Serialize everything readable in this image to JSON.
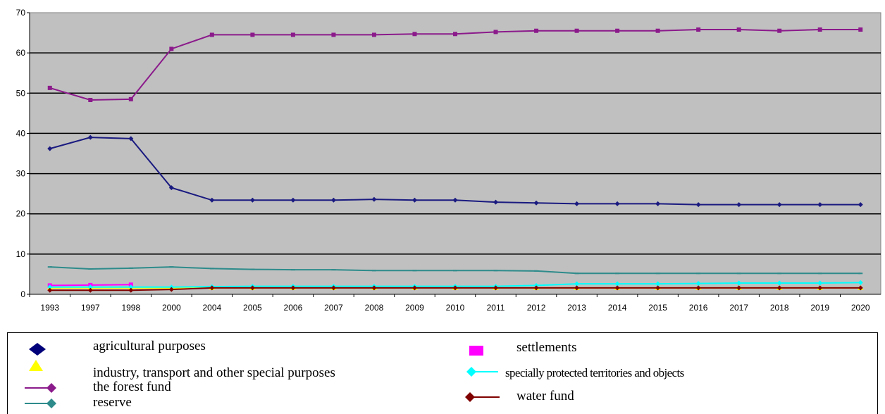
{
  "chart_data": {
    "type": "line",
    "x": [
      "1993",
      "1997",
      "1998",
      "2000",
      "2004",
      "2005",
      "2006",
      "2007",
      "2008",
      "2009",
      "2010",
      "2011",
      "2012",
      "2013",
      "2014",
      "2015",
      "2016",
      "2017",
      "2018",
      "2019",
      "2020"
    ],
    "ylim": [
      0,
      70
    ],
    "yticks": [
      "0",
      "10",
      "20",
      "30",
      "40",
      "50",
      "60",
      "70"
    ],
    "grid": true,
    "legend_position": "bottom",
    "series": [
      {
        "name": "agricultural purposes",
        "color": "#1a1a80",
        "marker": "diamond",
        "values": [
          36.2,
          39.0,
          38.7,
          26.5,
          23.4,
          23.4,
          23.4,
          23.4,
          23.6,
          23.4,
          23.4,
          22.9,
          22.7,
          22.5,
          22.5,
          22.5,
          22.3,
          22.3,
          22.3,
          22.3,
          22.3
        ]
      },
      {
        "name": "settlements",
        "color": "#ff00ff",
        "marker": "square",
        "values": [
          2.2,
          2.3,
          2.4,
          null,
          null,
          null,
          null,
          null,
          null,
          null,
          null,
          null,
          null,
          null,
          null,
          null,
          null,
          null,
          null,
          null,
          null
        ]
      },
      {
        "name": "industry, transport and other special purposes",
        "color": "#ffff00",
        "marker": "triangle",
        "values": [
          1.6,
          1.6,
          1.6,
          1.6,
          1.6,
          1.6,
          1.6,
          1.6,
          1.6,
          1.6,
          1.6,
          1.6,
          1.6,
          1.6,
          1.6,
          1.6,
          1.6,
          1.6,
          1.6,
          1.6,
          1.6
        ]
      },
      {
        "name": "specially protected territories and objects",
        "color": "#00ffff",
        "marker": "diamond",
        "values": [
          1.8,
          1.8,
          1.8,
          1.8,
          1.9,
          2.0,
          2.0,
          2.0,
          2.0,
          2.0,
          2.0,
          2.0,
          2.2,
          2.6,
          2.6,
          2.6,
          2.7,
          2.8,
          2.8,
          2.8,
          2.9
        ]
      },
      {
        "name": "the forest fund",
        "color": "#8b1a8b",
        "marker": "square",
        "values": [
          51.3,
          48.3,
          48.5,
          61.0,
          64.5,
          64.5,
          64.5,
          64.5,
          64.5,
          64.7,
          64.7,
          65.2,
          65.5,
          65.5,
          65.5,
          65.5,
          65.8,
          65.8,
          65.5,
          65.8,
          65.8
        ]
      },
      {
        "name": "water fund",
        "color": "#800000",
        "marker": "diamond",
        "values": [
          1.0,
          1.0,
          1.0,
          1.2,
          1.6,
          1.6,
          1.6,
          1.6,
          1.6,
          1.6,
          1.6,
          1.6,
          1.6,
          1.6,
          1.6,
          1.6,
          1.6,
          1.6,
          1.6,
          1.6,
          1.6
        ]
      },
      {
        "name": "reserve",
        "color": "#2e8b8b",
        "marker": "dash",
        "values": [
          6.8,
          6.3,
          6.5,
          6.8,
          6.4,
          6.2,
          6.1,
          6.1,
          5.9,
          5.9,
          5.9,
          5.9,
          5.8,
          5.2,
          5.2,
          5.2,
          5.2,
          5.2,
          5.2,
          5.2,
          5.2
        ]
      }
    ]
  },
  "legend": [
    {
      "key": "agricultural",
      "label": "agricultural purposes",
      "color": "#00007a",
      "symbol": "diamond"
    },
    {
      "key": "settlements",
      "label": "settlements",
      "color": "#ff00ff",
      "symbol": "square"
    },
    {
      "key": "industry",
      "label": "industry, transport and other special purposes",
      "color": "#ffff00",
      "symbol": "triangle"
    },
    {
      "key": "protected",
      "label": "specially protected territories and objects",
      "color": "#00ffff",
      "symbol": "diamond-line"
    },
    {
      "key": "forest",
      "label": "the forest fund",
      "color": "#8b1a8b",
      "symbol": "line-diamond"
    },
    {
      "key": "water",
      "label": "water fund",
      "color": "#800000",
      "symbol": "diamond-line"
    },
    {
      "key": "reserve",
      "label": "reserve",
      "color": "#2e8b8b",
      "symbol": "line-diamond"
    }
  ]
}
